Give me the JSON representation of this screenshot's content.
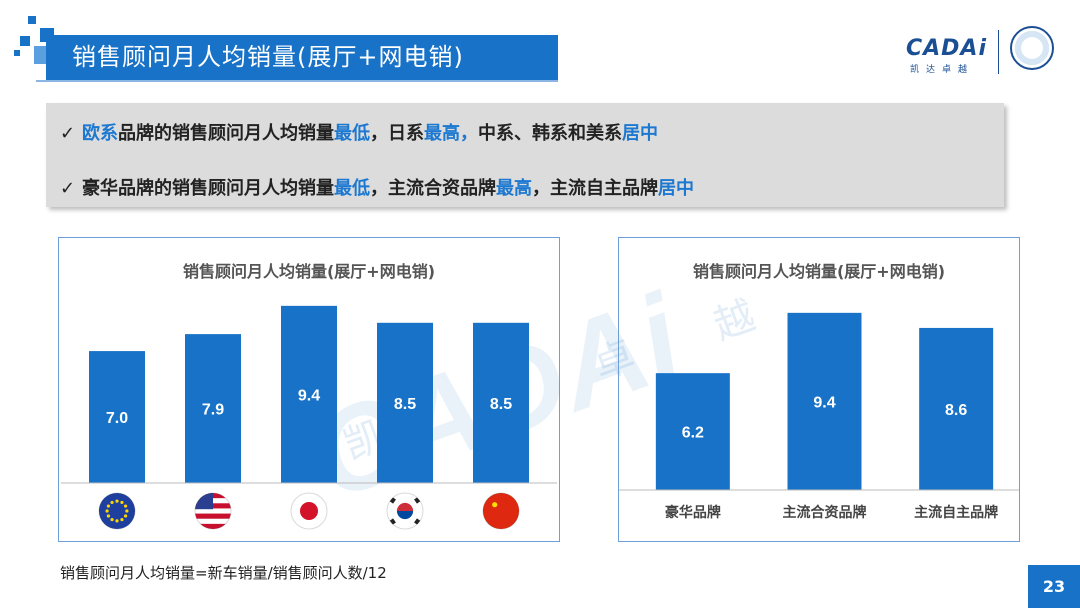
{
  "header": {
    "title": "销售顾问月人均销量(展厅+网电销)",
    "logo_text": "CADAi",
    "logo_subtext": "凯达卓越"
  },
  "bullets": [
    {
      "segments": [
        {
          "text": "欧系",
          "highlight": true
        },
        {
          "text": "品牌的销售顾问月人均销量",
          "highlight": false
        },
        {
          "text": "最低",
          "highlight": true
        },
        {
          "text": "，日系",
          "highlight": false
        },
        {
          "text": "最高，",
          "highlight": true
        },
        {
          "text": "中系、韩系和美系",
          "highlight": false
        },
        {
          "text": "居中",
          "highlight": true
        }
      ]
    },
    {
      "segments": [
        {
          "text": "豪华品牌的销售顾问月人均销量",
          "highlight": false
        },
        {
          "text": "最低",
          "highlight": true
        },
        {
          "text": "，主流合资品牌",
          "highlight": false
        },
        {
          "text": "最高",
          "highlight": true
        },
        {
          "text": "，主流自主品牌",
          "highlight": false
        },
        {
          "text": "居中",
          "highlight": true
        }
      ]
    }
  ],
  "chart_data": [
    {
      "type": "bar",
      "title": "销售顾问月人均销量(展厅+网电销)",
      "categories_icons": [
        "eu-flag-icon",
        "us-flag-icon",
        "japan-flag-icon",
        "korea-flag-icon",
        "china-flag-icon"
      ],
      "values": [
        7.0,
        7.9,
        9.4,
        8.5,
        8.5
      ],
      "value_labels": [
        "7.0",
        "7.9",
        "9.4",
        "8.5",
        "8.5"
      ],
      "ylim": [
        0,
        10.4
      ],
      "grid": false,
      "bar_color": "#1873c8"
    },
    {
      "type": "bar",
      "title": "销售顾问月人均销量(展厅+网电销)",
      "categories": [
        "豪华品牌",
        "主流合资品牌",
        "主流自主品牌"
      ],
      "values": [
        6.2,
        9.4,
        8.6
      ],
      "value_labels": [
        "6.2",
        "9.4",
        "8.6"
      ],
      "ylim": [
        0,
        10.4
      ],
      "grid": false,
      "bar_color": "#1873c8"
    }
  ],
  "footer": {
    "formula": "销售顾问月人均销量=新车销量/销售顾问人数/12",
    "page_number": "23"
  },
  "colors": {
    "accent": "#1873c8",
    "highlight_text": "#1c78d0",
    "bullet_bg": "#dcdcdc"
  }
}
